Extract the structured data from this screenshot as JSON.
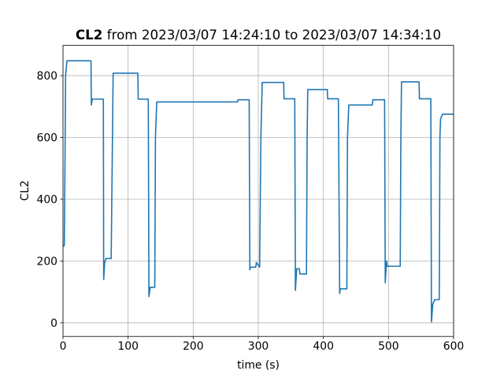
{
  "chart_data": {
    "type": "line",
    "title": [
      "CL2",
      "from 2023/03/07 14:24:10 to 2023/03/07 14:34:10"
    ],
    "xlabel": "time (s)",
    "ylabel": "CL2",
    "xlim": [
      0,
      600
    ],
    "xticks": [
      0,
      100,
      200,
      300,
      400,
      500,
      600
    ],
    "ylim": [
      -44,
      898
    ],
    "yticks": [
      0,
      200,
      400,
      600,
      800
    ],
    "grid": true,
    "series": [
      {
        "name": "CL2",
        "color": "#1f77b4",
        "x": [
          0,
          2,
          3,
          4,
          6,
          43,
          43.5,
          45,
          62,
          62.5,
          64,
          66,
          74,
          76,
          77,
          115,
          115.5,
          131,
          132,
          134,
          141,
          142,
          144,
          268,
          269,
          286,
          287,
          288,
          296,
          297,
          302,
          304,
          306,
          339,
          339.5,
          356,
          357,
          359,
          363,
          364,
          374,
          375,
          376,
          406,
          406.5,
          423,
          425,
          426,
          436,
          437,
          439,
          475,
          476,
          494,
          495,
          497,
          498,
          518,
          519,
          520,
          547,
          547.5,
          565,
          566,
          568,
          571,
          578,
          579,
          580,
          583,
          600
        ],
        "values": [
          248,
          250,
          500,
          800,
          848,
          848,
          705,
          724,
          724,
          140,
          195,
          208,
          208,
          600,
          808,
          808,
          724,
          724,
          85,
          115,
          115,
          600,
          715,
          715,
          722,
          722,
          172,
          180,
          180,
          195,
          180,
          600,
          778,
          778,
          725,
          725,
          105,
          175,
          175,
          158,
          158,
          600,
          755,
          755,
          725,
          725,
          95,
          110,
          110,
          600,
          705,
          705,
          722,
          722,
          130,
          200,
          183,
          183,
          600,
          780,
          780,
          725,
          725,
          3,
          60,
          75,
          75,
          600,
          660,
          675,
          675
        ]
      }
    ]
  }
}
